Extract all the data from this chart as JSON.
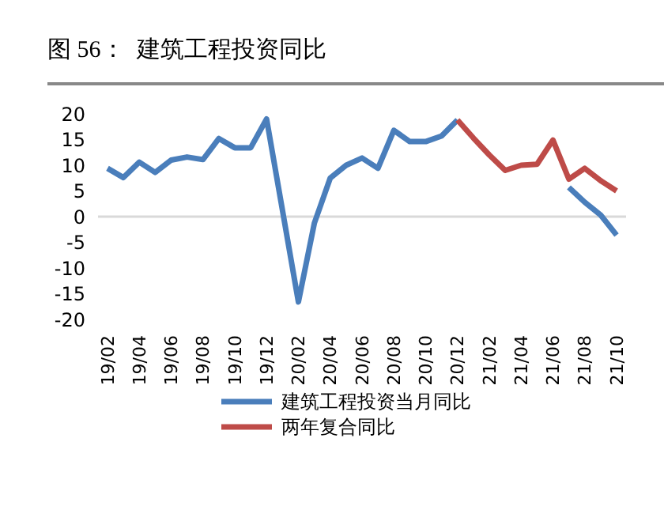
{
  "chart_data": {
    "type": "line",
    "title": "图 56：  建筑工程投资同比",
    "categories": [
      "19/02",
      null,
      "19/04",
      null,
      "19/06",
      null,
      "19/08",
      null,
      "19/10",
      null,
      "19/12",
      null,
      "20/02",
      null,
      "20/04",
      null,
      "20/06",
      null,
      "20/08",
      null,
      "20/10",
      null,
      "20/12",
      null,
      "21/02",
      null,
      "21/04",
      null,
      "21/06",
      null,
      "21/08",
      null,
      "21/10"
    ],
    "series": [
      {
        "name": "建筑工程投资当月同比",
        "color": "#4a7ebb",
        "values": [
          9.4,
          7.6,
          10.6,
          8.6,
          11,
          11.6,
          11.1,
          15.2,
          13.4,
          13.4,
          19,
          null,
          -16.6,
          -1.3,
          7.5,
          10,
          11.4,
          9.4,
          16.8,
          14.6,
          14.6,
          15.7,
          18.8,
          null,
          null,
          null,
          null,
          null,
          null,
          5.7,
          2.8,
          0.3,
          -3.6
        ]
      },
      {
        "name": "两年复合同比",
        "color": "#be4b48",
        "values": [
          null,
          null,
          null,
          null,
          null,
          null,
          null,
          null,
          null,
          null,
          null,
          null,
          null,
          null,
          null,
          null,
          null,
          null,
          null,
          null,
          null,
          null,
          18.8,
          15.3,
          12,
          9,
          10,
          10.2,
          14.9,
          7.3,
          9.4,
          7,
          5
        ]
      }
    ],
    "ylim": [
      -20,
      20
    ],
    "yticks": [
      -20,
      -15,
      -10,
      -5,
      0,
      5,
      10,
      15,
      20
    ],
    "ref_lines": [
      {
        "axis": "y",
        "value": 0,
        "color": "#d9d9d9"
      }
    ],
    "grid": false,
    "legend": "bottom",
    "marker": "none",
    "line_style": "solid"
  }
}
